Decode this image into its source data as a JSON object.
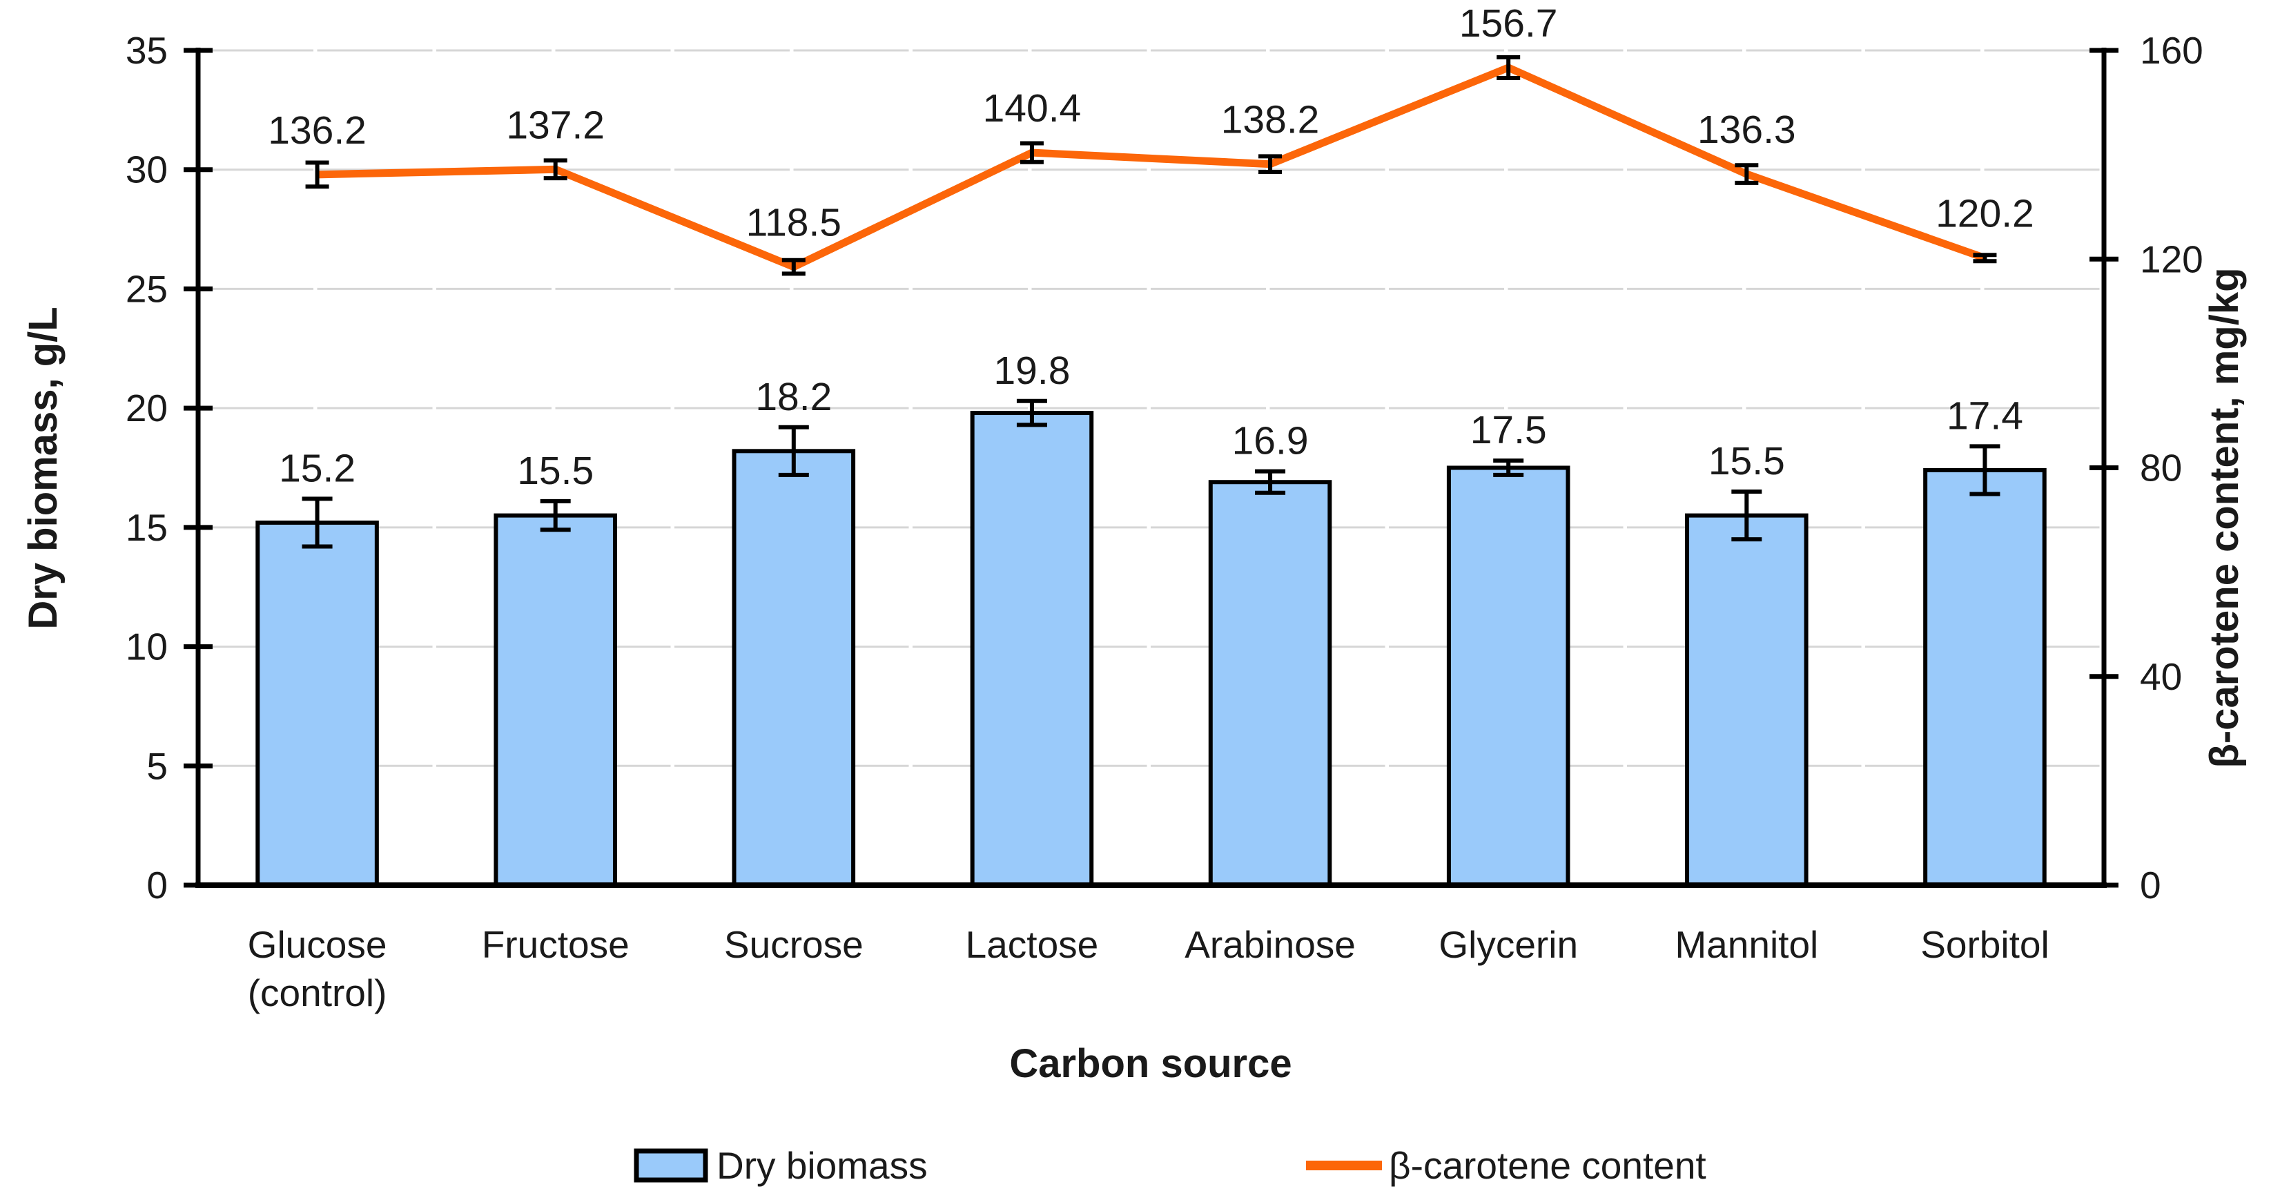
{
  "figure": {
    "background": "#FFFFFF",
    "legend": [
      {
        "swatch": "bar-swatch",
        "label": "Dry biomass"
      },
      {
        "swatch": "line-swatch",
        "label": "β-carotene content"
      }
    ]
  },
  "chart_data": {
    "type": "combo-bar-line",
    "title": "",
    "xlabel": "Carbon source",
    "ylabel_left": "Dry biomass, g/L",
    "ylabel_right": "β-carotene content, mg/kg",
    "categories": [
      "Glucose (control)",
      "Fructose",
      "Sucrose",
      "Lactose",
      "Arabinose",
      "Glycerin",
      "Mannitol",
      "Sorbitol"
    ],
    "category_lines": [
      [
        "Glucose",
        "(control)"
      ],
      [
        "Fructose"
      ],
      [
        "Sucrose"
      ],
      [
        "Lactose"
      ],
      [
        "Arabinose"
      ],
      [
        "Glycerin"
      ],
      [
        "Mannitol"
      ],
      [
        "Sorbitol"
      ]
    ],
    "series": [
      {
        "name": "Dry biomass",
        "type": "bar",
        "axis": "left",
        "color": "#9ACAFA",
        "border_color": "#000000",
        "values": [
          15.2,
          15.5,
          18.2,
          19.8,
          16.9,
          17.5,
          15.5,
          17.4
        ],
        "labels": [
          "15.2",
          "15.5",
          "18.2",
          "19.8",
          "16.9",
          "17.5",
          "15.5",
          "17.4"
        ],
        "errors": [
          1.0,
          0.6,
          1.0,
          0.5,
          0.45,
          0.3,
          1.0,
          1.0
        ]
      },
      {
        "name": "β-carotene content",
        "type": "line",
        "axis": "right",
        "color": "#FC6609",
        "values": [
          136.2,
          137.2,
          118.5,
          140.4,
          138.2,
          156.7,
          136.3,
          120.2
        ],
        "labels": [
          "136.2",
          "137.2",
          "118.5",
          "140.4",
          "138.2",
          "156.7",
          "136.3",
          "120.2"
        ],
        "errors": [
          2.3,
          1.7,
          1.3,
          1.8,
          1.5,
          2.0,
          1.7,
          0.6
        ]
      }
    ],
    "left_axis": {
      "min": 0,
      "max": 35,
      "step": 5,
      "tick_labels": [
        "0",
        "5",
        "10",
        "15",
        "20",
        "25",
        "30",
        "35"
      ]
    },
    "right_axis": {
      "min": 0,
      "max": 160,
      "step": 40,
      "tick_labels": [
        "0",
        "40",
        "80",
        "120",
        "160"
      ]
    },
    "grid": {
      "horizontal": true,
      "color": "#D6D6D6"
    },
    "error_bar_color": "#000000",
    "legend_position": "bottom"
  }
}
